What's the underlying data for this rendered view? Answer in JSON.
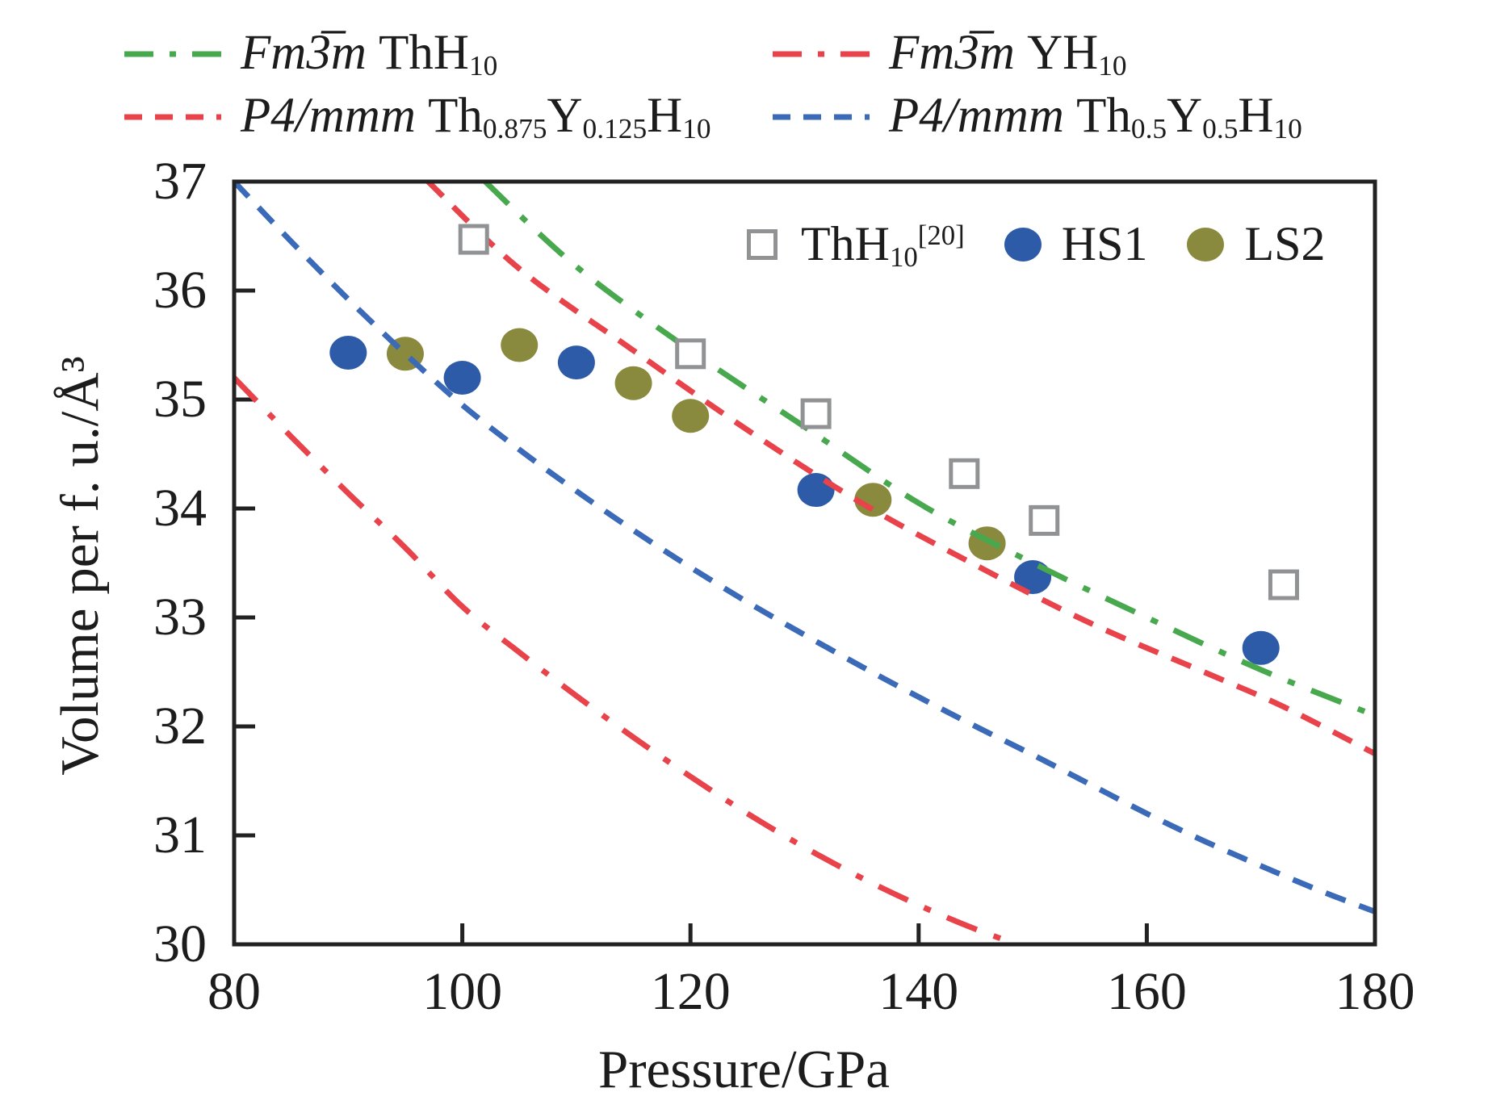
{
  "figure": {
    "background": "#ffffff",
    "frame_color": "#222222"
  },
  "axes": {
    "x": {
      "label": "Pressure/GPa",
      "min": 80,
      "max": 180,
      "ticks": [
        80,
        100,
        120,
        140,
        160,
        180
      ]
    },
    "y": {
      "label": "Volume per f. u./Å³",
      "min": 30,
      "max": 37,
      "ticks": [
        30,
        31,
        32,
        33,
        34,
        35,
        36,
        37
      ]
    }
  },
  "colors": {
    "green_curve": "#48a84e",
    "red_curve": "#e8434b",
    "blue_curve": "#3a6ab8",
    "blue_marker": "#2d5ba8",
    "olive_marker": "#8a8a3e",
    "gray_marker": "#909294",
    "frame": "#222222"
  },
  "legend_top": [
    {
      "style": "dashdot",
      "color": "#48a84e",
      "parts": [
        {
          "text": "Fm3̅m ",
          "style": "italic"
        },
        {
          "text": "ThH"
        },
        {
          "text": "10",
          "style": "sub"
        }
      ]
    },
    {
      "style": "dashdot",
      "color": "#e8434b",
      "parts": [
        {
          "text": "Fm3̅m ",
          "style": "italic"
        },
        {
          "text": "YH"
        },
        {
          "text": "10",
          "style": "sub"
        }
      ]
    },
    {
      "style": "dashed",
      "color": "#e8434b",
      "parts": [
        {
          "text": "P4/mmm ",
          "style": "italic"
        },
        {
          "text": "Th"
        },
        {
          "text": "0.875",
          "style": "sub"
        },
        {
          "text": "Y"
        },
        {
          "text": "0.125",
          "style": "sub"
        },
        {
          "text": "H"
        },
        {
          "text": "10",
          "style": "sub"
        }
      ]
    },
    {
      "style": "dashed",
      "color": "#3a6ab8",
      "parts": [
        {
          "text": "P4/mmm ",
          "style": "italic"
        },
        {
          "text": "Th"
        },
        {
          "text": "0.5",
          "style": "sub"
        },
        {
          "text": "Y"
        },
        {
          "text": "0.5",
          "style": "sub"
        },
        {
          "text": "H"
        },
        {
          "text": "10",
          "style": "sub"
        }
      ]
    }
  ],
  "legend_inner": [
    {
      "marker": "open-square",
      "color": "#909294",
      "parts": [
        {
          "text": "ThH"
        },
        {
          "text": "10",
          "style": "sub"
        },
        {
          "text": "[20]",
          "style": "sup"
        }
      ]
    },
    {
      "marker": "circle",
      "color": "#2d5ba8",
      "parts": [
        {
          "text": "HS1"
        }
      ]
    },
    {
      "marker": "circle",
      "color": "#8a8a3e",
      "parts": [
        {
          "text": "LS2"
        }
      ]
    }
  ],
  "chart_data": {
    "type": "line",
    "title": "",
    "xlabel": "Pressure/GPa",
    "ylabel": "Volume per f. u./Å³",
    "xlim": [
      80,
      180
    ],
    "ylim": [
      30,
      37
    ],
    "grid": false,
    "legend_position": "curves top-outside, markers inside top-right",
    "curves": [
      {
        "name": "Fm3̅m ThH10",
        "style": "dashdot",
        "color": "#48a84e",
        "points": [
          [
            102,
            37.0
          ],
          [
            110,
            36.22
          ],
          [
            120,
            35.45
          ],
          [
            130,
            34.75
          ],
          [
            140,
            34.05
          ],
          [
            150,
            33.5
          ],
          [
            160,
            33.0
          ],
          [
            170,
            32.52
          ],
          [
            180,
            32.1
          ]
        ]
      },
      {
        "name": "P4/mmm Th0.875Y0.125H10",
        "style": "dashed",
        "color": "#e8434b",
        "points": [
          [
            97,
            37.0
          ],
          [
            105,
            36.2
          ],
          [
            115,
            35.45
          ],
          [
            125,
            34.72
          ],
          [
            135,
            34.05
          ],
          [
            145,
            33.48
          ],
          [
            155,
            32.95
          ],
          [
            165,
            32.5
          ],
          [
            172,
            32.18
          ],
          [
            180,
            31.75
          ]
        ]
      },
      {
        "name": "Fm3̅m YH10",
        "style": "dashdot",
        "color": "#e8434b",
        "points": [
          [
            80,
            35.2
          ],
          [
            85,
            34.66
          ],
          [
            90,
            34.14
          ],
          [
            95,
            33.64
          ],
          [
            100,
            33.1
          ],
          [
            105,
            32.68
          ],
          [
            110,
            32.28
          ],
          [
            115,
            31.9
          ],
          [
            120,
            31.54
          ],
          [
            125,
            31.2
          ],
          [
            130,
            30.89
          ],
          [
            135,
            30.61
          ],
          [
            140,
            30.36
          ],
          [
            144.5,
            30.16
          ],
          [
            148.6,
            30.0
          ]
        ]
      },
      {
        "name": "P4/mmm Th0.5Y0.5H10",
        "style": "dashed",
        "color": "#3a6ab8",
        "points": [
          [
            80,
            37.0
          ],
          [
            85,
            36.45
          ],
          [
            90,
            35.92
          ],
          [
            95,
            35.42
          ],
          [
            100,
            34.95
          ],
          [
            105,
            34.54
          ],
          [
            110,
            34.16
          ],
          [
            115,
            33.8
          ],
          [
            120,
            33.46
          ],
          [
            125,
            33.14
          ],
          [
            130,
            32.84
          ],
          [
            135,
            32.55
          ],
          [
            140,
            32.27
          ],
          [
            145,
            32.0
          ],
          [
            150,
            31.74
          ],
          [
            155,
            31.47
          ],
          [
            160,
            31.2
          ],
          [
            165,
            30.95
          ],
          [
            170,
            30.72
          ],
          [
            175,
            30.5
          ],
          [
            180,
            30.3
          ]
        ]
      }
    ],
    "scatter": [
      {
        "name": "ThH10 [20]",
        "marker": "open-square",
        "color": "#909294",
        "points": [
          [
            101,
            36.47
          ],
          [
            120,
            35.42
          ],
          [
            131,
            34.87
          ],
          [
            144,
            34.32
          ],
          [
            151,
            33.89
          ],
          [
            172,
            33.3
          ]
        ]
      },
      {
        "name": "HS1",
        "marker": "circle",
        "color": "#2d5ba8",
        "points": [
          [
            90,
            35.43
          ],
          [
            100,
            35.2
          ],
          [
            110,
            35.34
          ],
          [
            131,
            34.17
          ],
          [
            150,
            33.37
          ],
          [
            170,
            32.72
          ]
        ]
      },
      {
        "name": "LS2",
        "marker": "circle",
        "color": "#8a8a3e",
        "points": [
          [
            95,
            35.42
          ],
          [
            105,
            35.5
          ],
          [
            115,
            35.15
          ],
          [
            120,
            34.85
          ],
          [
            136,
            34.08
          ],
          [
            146,
            33.68
          ]
        ]
      }
    ]
  }
}
